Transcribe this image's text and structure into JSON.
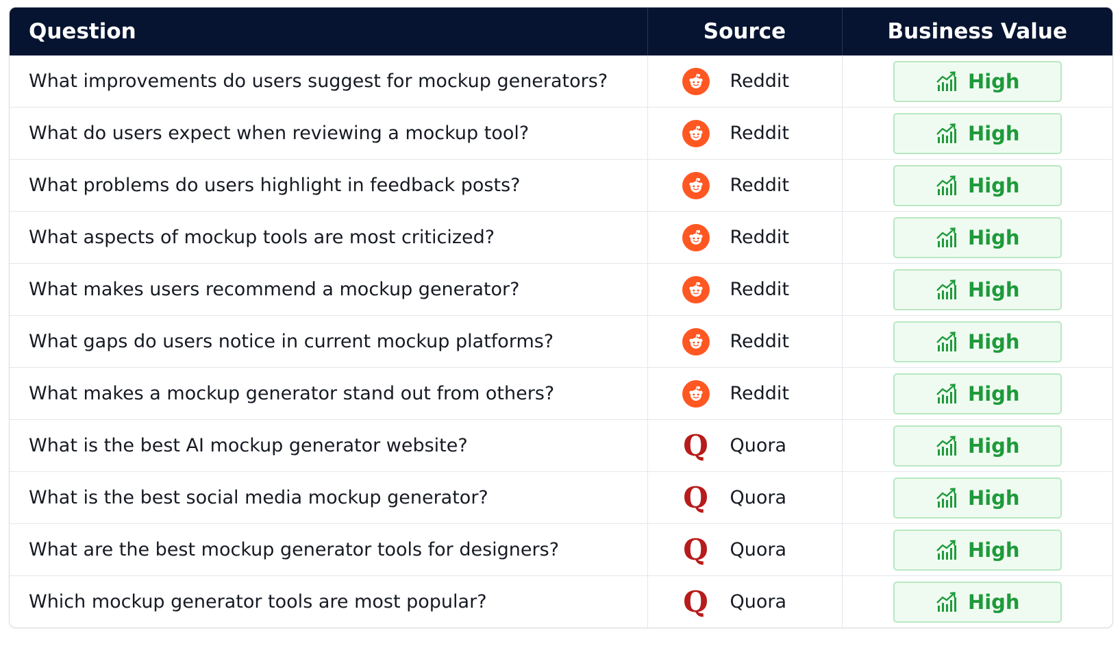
{
  "table": {
    "headers": {
      "question": "Question",
      "source": "Source",
      "value": "Business Value"
    },
    "rows": [
      {
        "question": "What improvements do users suggest for mockup generators?",
        "source": "Reddit",
        "source_icon": "reddit-icon",
        "value": "High"
      },
      {
        "question": "What do users expect when reviewing a mockup tool?",
        "source": "Reddit",
        "source_icon": "reddit-icon",
        "value": "High"
      },
      {
        "question": "What problems do users highlight in feedback posts?",
        "source": "Reddit",
        "source_icon": "reddit-icon",
        "value": "High"
      },
      {
        "question": "What aspects of mockup tools are most criticized?",
        "source": "Reddit",
        "source_icon": "reddit-icon",
        "value": "High"
      },
      {
        "question": "What makes users recommend a mockup generator?",
        "source": "Reddit",
        "source_icon": "reddit-icon",
        "value": "High"
      },
      {
        "question": "What gaps do users notice in current mockup platforms?",
        "source": "Reddit",
        "source_icon": "reddit-icon",
        "value": "High"
      },
      {
        "question": "What makes a mockup generator stand out from others?",
        "source": "Reddit",
        "source_icon": "reddit-icon",
        "value": "High"
      },
      {
        "question": "What is the best AI mockup generator website?",
        "source": "Quora",
        "source_icon": "quora-icon",
        "value": "High"
      },
      {
        "question": "What is the best social media mockup generator?",
        "source": "Quora",
        "source_icon": "quora-icon",
        "value": "High"
      },
      {
        "question": "What are the best mockup generator tools for designers?",
        "source": "Quora",
        "source_icon": "quora-icon",
        "value": "High"
      },
      {
        "question": "Which mockup generator tools are most popular?",
        "source": "Quora",
        "source_icon": "quora-icon",
        "value": "High"
      }
    ]
  },
  "colors": {
    "header_bg": "#061431",
    "reddit": "#ff5722",
    "quora": "#b71c1c",
    "high_text": "#1e9a3a",
    "badge_bg": "#effbf1",
    "badge_border": "#b9e7c2"
  },
  "icons": {
    "value_badge": "chart-trend-up-icon",
    "quora_glyph": "Q"
  }
}
